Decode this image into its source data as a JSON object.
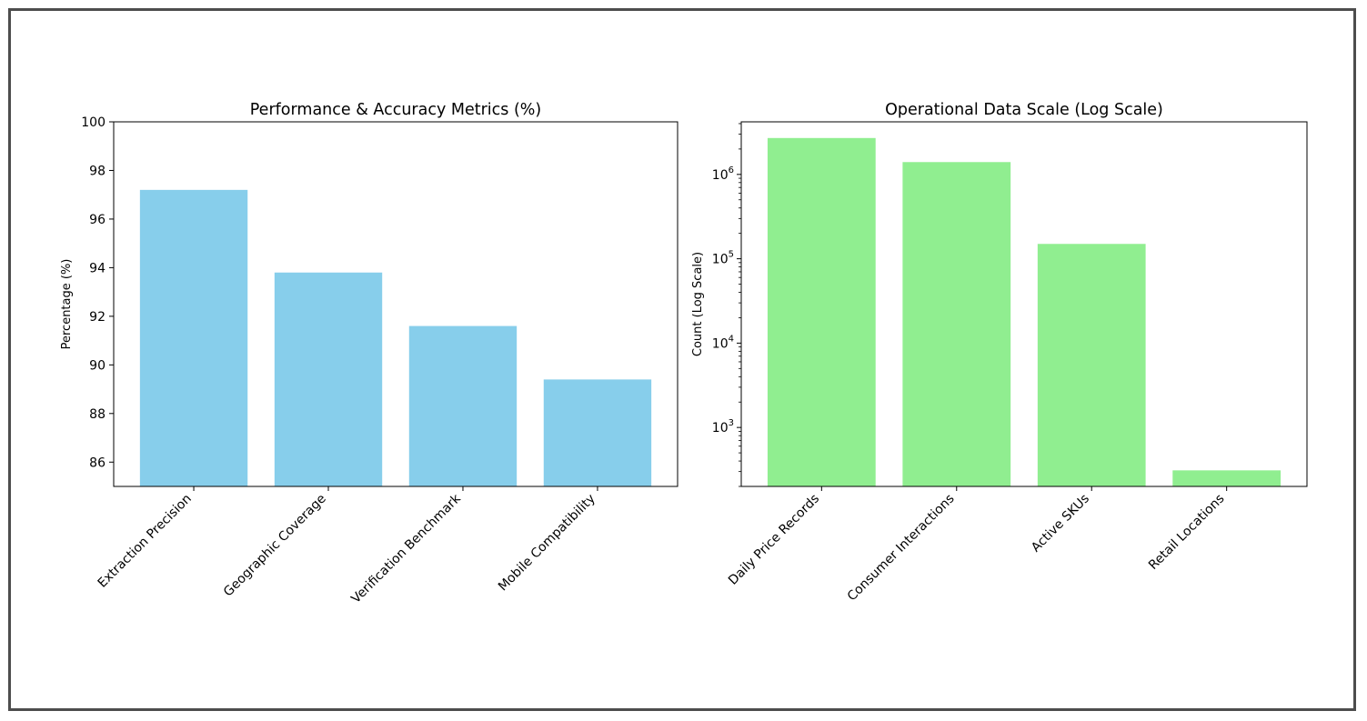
{
  "chart_data": [
    {
      "type": "bar",
      "title": "Performance & Accuracy Metrics (%)",
      "xlabel": "",
      "ylabel": "Percentage (%)",
      "categories": [
        "Extraction Precision",
        "Geographic Coverage",
        "Verification Benchmark",
        "Mobile Compatibility"
      ],
      "values": [
        97.2,
        93.8,
        91.6,
        89.4
      ],
      "ylim": [
        85,
        100
      ],
      "yticks": [
        86,
        88,
        90,
        92,
        94,
        96,
        98,
        100
      ],
      "yscale": "linear",
      "color": "#87ceeb",
      "grid": false,
      "legend": "none"
    },
    {
      "type": "bar",
      "title": "Operational Data Scale (Log Scale)",
      "xlabel": "",
      "ylabel": "Count (Log Scale)",
      "categories": [
        "Daily Price Records",
        "Consumer Interactions",
        "Active SKUs",
        "Retail Locations"
      ],
      "values": [
        2700000,
        1400000,
        150000,
        310
      ],
      "ylim": [
        200,
        4200000
      ],
      "yticks": [
        1000,
        10000,
        100000,
        1000000
      ],
      "ytick_labels": [
        {
          "base": "10",
          "exp": "3"
        },
        {
          "base": "10",
          "exp": "4"
        },
        {
          "base": "10",
          "exp": "5"
        },
        {
          "base": "10",
          "exp": "6"
        }
      ],
      "yscale": "log",
      "color": "#90ee90",
      "grid": false,
      "legend": "none"
    }
  ]
}
